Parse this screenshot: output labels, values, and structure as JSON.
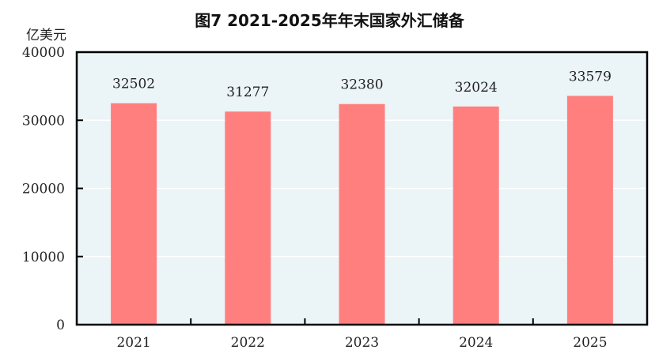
{
  "chart_data": {
    "type": "bar",
    "title": "图7  2021-2025年年末国家外汇储备",
    "ylabel": "亿美元",
    "xlabel": "",
    "categories": [
      "2021",
      "2022",
      "2023",
      "2024",
      "2025"
    ],
    "values": [
      32502,
      31277,
      32380,
      32024,
      33579
    ],
    "ylim": [
      0,
      40000
    ],
    "yticks": [
      0,
      10000,
      20000,
      30000,
      40000
    ],
    "grid": true,
    "data_labels": true,
    "colors": {
      "bar": "#FF7F7F",
      "plot_background": "#EBF4F7",
      "grid": "#FFFFFF",
      "axis": "#000000"
    }
  }
}
